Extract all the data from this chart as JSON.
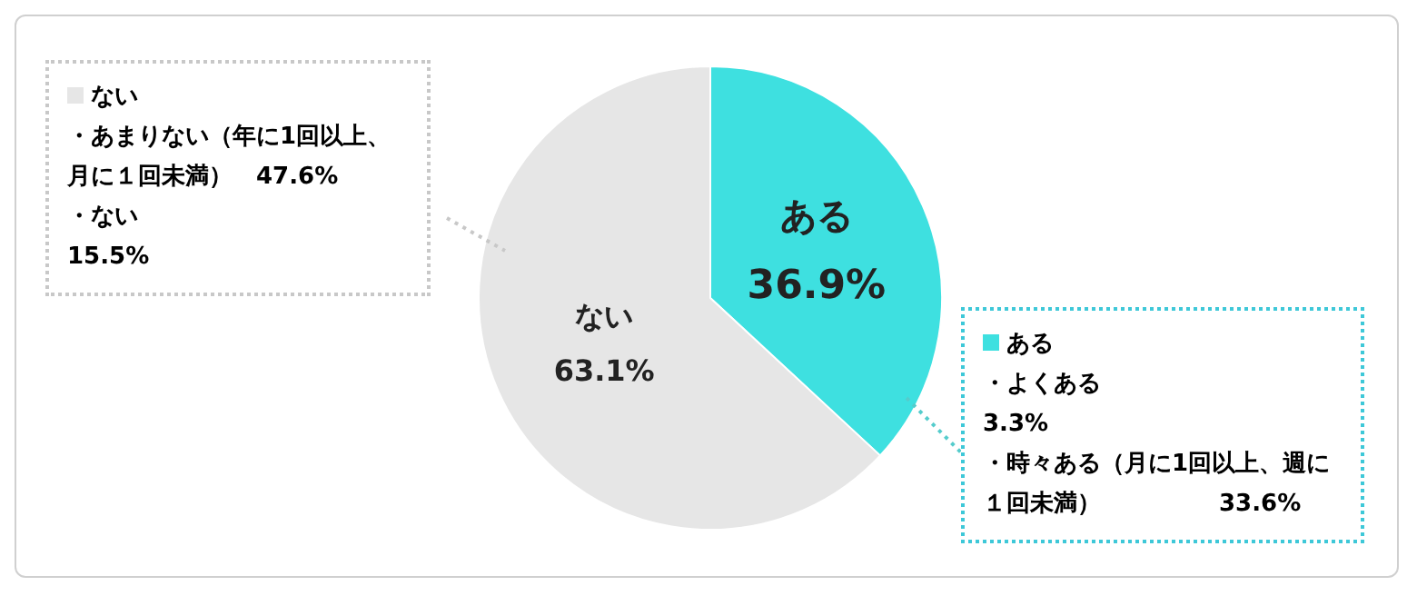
{
  "chart_data": {
    "type": "pie",
    "categories": [
      "ある",
      "ない"
    ],
    "values": [
      36.9,
      63.1
    ],
    "colors": [
      "#3ee0e0",
      "#e6e6e6"
    ],
    "annotations": [
      "・よくある　　　　　　　　3.3%",
      "・時々ある（月に1回以上、週に１回未満）　　　　　33.6%",
      "・あまりない（年に1回以上、月に１回未満）　47.6%",
      "・ない　　　　　　　　15.5%"
    ],
    "value_labels": [
      "36.9%",
      "63.1%"
    ],
    "legend": "left"
  }
}
